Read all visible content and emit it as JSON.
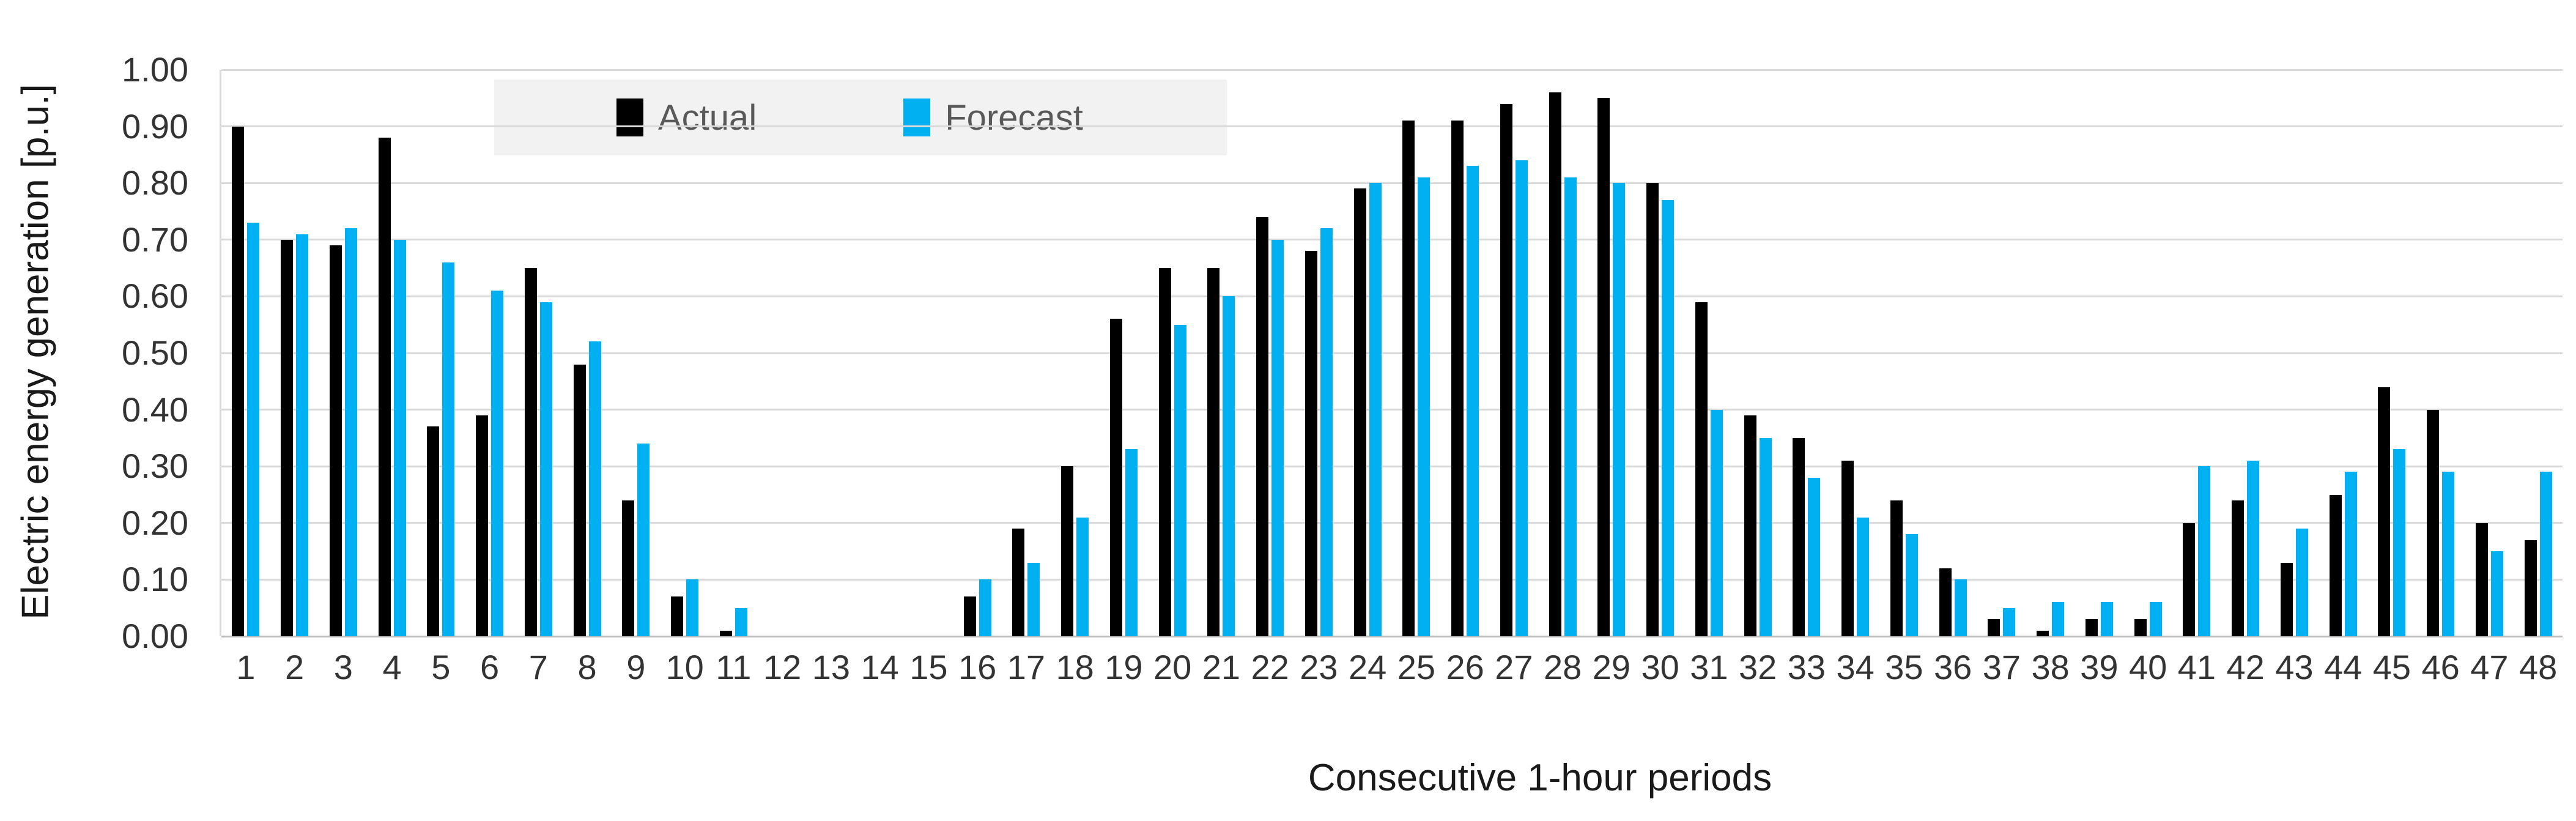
{
  "chart_data": {
    "type": "bar",
    "title": "",
    "xlabel": "Consecutive 1-hour periods",
    "ylabel": "Electric energy generation [p.u.]",
    "categories": [
      "1",
      "2",
      "3",
      "4",
      "5",
      "6",
      "7",
      "8",
      "9",
      "10",
      "11",
      "12",
      "13",
      "14",
      "15",
      "16",
      "17",
      "18",
      "19",
      "20",
      "21",
      "22",
      "23",
      "24",
      "25",
      "26",
      "27",
      "28",
      "29",
      "30",
      "31",
      "32",
      "33",
      "34",
      "35",
      "36",
      "37",
      "38",
      "39",
      "40",
      "41",
      "42",
      "43",
      "44",
      "45",
      "46",
      "47",
      "48"
    ],
    "series": [
      {
        "name": "Actual",
        "color": "#000000",
        "values": [
          0.9,
          0.7,
          0.69,
          0.88,
          0.37,
          0.39,
          0.65,
          0.48,
          0.24,
          0.07,
          0.01,
          0.0,
          0.0,
          0.0,
          0.0,
          0.07,
          0.19,
          0.3,
          0.56,
          0.65,
          0.65,
          0.74,
          0.68,
          0.79,
          0.91,
          0.91,
          0.94,
          0.96,
          0.95,
          0.8,
          0.59,
          0.39,
          0.35,
          0.31,
          0.24,
          0.12,
          0.03,
          0.01,
          0.03,
          0.03,
          0.2,
          0.24,
          0.13,
          0.25,
          0.44,
          0.4,
          0.2,
          0.17
        ]
      },
      {
        "name": "Forecast",
        "color": "#00B0F0",
        "values": [
          0.73,
          0.71,
          0.72,
          0.7,
          0.66,
          0.61,
          0.59,
          0.52,
          0.34,
          0.1,
          0.05,
          0.0,
          0.0,
          0.0,
          0.0,
          0.1,
          0.13,
          0.21,
          0.33,
          0.55,
          0.6,
          0.7,
          0.72,
          0.8,
          0.81,
          0.83,
          0.84,
          0.81,
          0.8,
          0.77,
          0.4,
          0.35,
          0.28,
          0.21,
          0.18,
          0.1,
          0.05,
          0.06,
          0.06,
          0.06,
          0.3,
          0.31,
          0.19,
          0.29,
          0.33,
          0.29,
          0.15,
          0.29
        ]
      }
    ],
    "ylim": [
      0.0,
      1.0
    ],
    "ytick_labels": [
      "0.00",
      "0.10",
      "0.20",
      "0.30",
      "0.40",
      "0.50",
      "0.60",
      "0.70",
      "0.80",
      "0.90",
      "1.00"
    ],
    "grid": true,
    "legend_position": "top-center",
    "colors": {
      "gridline": "#D9D9D9",
      "axis_line": "#BFBFBF",
      "tick_text": "#333333",
      "title_text": "#1a1a1a",
      "legend_bg": "#F2F2F2",
      "legend_text": "#595959",
      "background": "#FFFFFF"
    }
  }
}
